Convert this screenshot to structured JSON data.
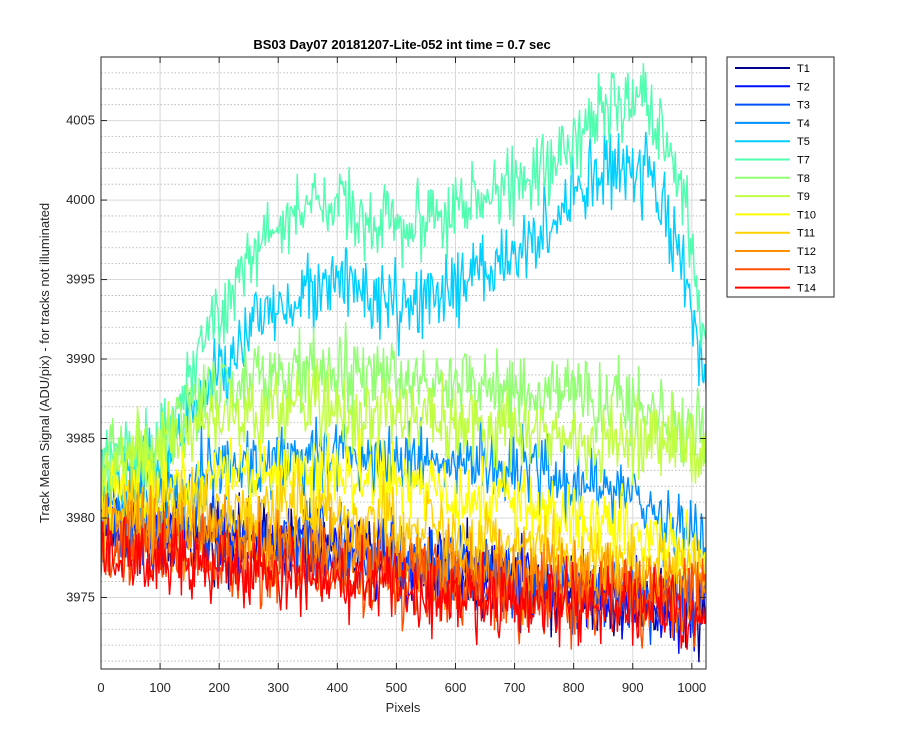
{
  "chart_data": {
    "type": "line",
    "title": "BS03 Day07 20181207-Lite-052 int time = 0.7 sec",
    "xlabel": "Pixels",
    "ylabel": "Track Mean Signal (ADU/pix) - for tracks not illuminated",
    "xlim": [
      0,
      1024
    ],
    "ylim": [
      3970.5,
      4009
    ],
    "xticks": [
      "0",
      "100",
      "200",
      "300",
      "400",
      "500",
      "600",
      "700",
      "800",
      "900",
      "1000"
    ],
    "yticks": [
      "3975",
      "3980",
      "3985",
      "3990",
      "3995",
      "4000",
      "4005"
    ],
    "grid": true,
    "minor_grid": true,
    "legend_position": "outside-right",
    "series": [
      {
        "name": "T1",
        "color": "#00008f",
        "noise": 1.5,
        "anchors": [
          [
            0,
            3979.5
          ],
          [
            150,
            3979
          ],
          [
            400,
            3978
          ],
          [
            700,
            3976
          ],
          [
            900,
            3975
          ],
          [
            1024,
            3974
          ]
        ]
      },
      {
        "name": "T2",
        "color": "#0010ff",
        "noise": 1.5,
        "anchors": [
          [
            0,
            3979.3
          ],
          [
            150,
            3979
          ],
          [
            400,
            3978
          ],
          [
            700,
            3976
          ],
          [
            900,
            3975
          ],
          [
            1024,
            3974
          ]
        ]
      },
      {
        "name": "T3",
        "color": "#0050ff",
        "noise": 1.5,
        "anchors": [
          [
            0,
            3979.6
          ],
          [
            150,
            3979.2
          ],
          [
            400,
            3978.3
          ],
          [
            700,
            3976.3
          ],
          [
            900,
            3975.3
          ],
          [
            1024,
            3974.3
          ]
        ]
      },
      {
        "name": "T4",
        "color": "#0090ff",
        "noise": 1.5,
        "anchors": [
          [
            0,
            3981
          ],
          [
            100,
            3982
          ],
          [
            200,
            3983
          ],
          [
            350,
            3984
          ],
          [
            500,
            3984
          ],
          [
            700,
            3983
          ],
          [
            850,
            3982
          ],
          [
            950,
            3980
          ],
          [
            1024,
            3979
          ]
        ]
      },
      {
        "name": "T5",
        "color": "#00cfff",
        "noise": 1.5,
        "anchors": [
          [
            0,
            3982
          ],
          [
            100,
            3983.5
          ],
          [
            200,
            3989
          ],
          [
            280,
            3993
          ],
          [
            380,
            3995
          ],
          [
            450,
            3994
          ],
          [
            530,
            3993
          ],
          [
            650,
            3995.5
          ],
          [
            750,
            3998
          ],
          [
            850,
            4002
          ],
          [
            920,
            4001.5
          ],
          [
            980,
            3997
          ],
          [
            1024,
            3988
          ]
        ]
      },
      {
        "name": "T7",
        "color": "#4fffaf",
        "noise": 1.5,
        "anchors": [
          [
            0,
            3983
          ],
          [
            100,
            3985
          ],
          [
            200,
            3993
          ],
          [
            280,
            3998
          ],
          [
            380,
            4000
          ],
          [
            450,
            3999
          ],
          [
            530,
            3998.5
          ],
          [
            650,
            4000
          ],
          [
            750,
            4002
          ],
          [
            850,
            4005.5
          ],
          [
            920,
            4006
          ],
          [
            980,
            4002
          ],
          [
            1024,
            3990
          ]
        ]
      },
      {
        "name": "T8",
        "color": "#90ff70",
        "noise": 1.5,
        "anchors": [
          [
            0,
            3983
          ],
          [
            100,
            3985
          ],
          [
            200,
            3988.5
          ],
          [
            350,
            3989
          ],
          [
            500,
            3989
          ],
          [
            700,
            3988
          ],
          [
            850,
            3987.5
          ],
          [
            950,
            3986.5
          ],
          [
            1024,
            3985
          ]
        ]
      },
      {
        "name": "T9",
        "color": "#bfff40",
        "noise": 1.5,
        "anchors": [
          [
            0,
            3983
          ],
          [
            100,
            3984.5
          ],
          [
            200,
            3986.5
          ],
          [
            350,
            3987
          ],
          [
            500,
            3986.5
          ],
          [
            700,
            3985.5
          ],
          [
            850,
            3985
          ],
          [
            950,
            3984.8
          ],
          [
            1024,
            3984.5
          ]
        ]
      },
      {
        "name": "T10",
        "color": "#ffff00",
        "noise": 1.5,
        "anchors": [
          [
            0,
            3981.5
          ],
          [
            150,
            3982.5
          ],
          [
            300,
            3983
          ],
          [
            450,
            3982.5
          ],
          [
            600,
            3981.5
          ],
          [
            750,
            3980.5
          ],
          [
            900,
            3979
          ],
          [
            1024,
            3977.5
          ]
        ]
      },
      {
        "name": "T11",
        "color": "#ffcf00",
        "noise": 1.5,
        "anchors": [
          [
            0,
            3980
          ],
          [
            150,
            3980.5
          ],
          [
            300,
            3980.5
          ],
          [
            450,
            3980
          ],
          [
            600,
            3979
          ],
          [
            750,
            3978
          ],
          [
            900,
            3977
          ],
          [
            1024,
            3976.5
          ]
        ]
      },
      {
        "name": "T12",
        "color": "#ff9000",
        "noise": 1.5,
        "anchors": [
          [
            0,
            3979
          ],
          [
            150,
            3979
          ],
          [
            300,
            3978.5
          ],
          [
            450,
            3978
          ],
          [
            600,
            3977
          ],
          [
            750,
            3976.5
          ],
          [
            900,
            3976
          ],
          [
            1024,
            3975.5
          ]
        ]
      },
      {
        "name": "T13",
        "color": "#ff5000",
        "noise": 1.5,
        "anchors": [
          [
            0,
            3978
          ],
          [
            150,
            3977.5
          ],
          [
            300,
            3977
          ],
          [
            450,
            3976.5
          ],
          [
            600,
            3975.5
          ],
          [
            750,
            3975
          ],
          [
            900,
            3974.8
          ],
          [
            1024,
            3974.5
          ]
        ]
      },
      {
        "name": "T14",
        "color": "#ff0000",
        "noise": 1.5,
        "anchors": [
          [
            0,
            3977.5
          ],
          [
            150,
            3977
          ],
          [
            300,
            3976.5
          ],
          [
            450,
            3976
          ],
          [
            600,
            3975
          ],
          [
            750,
            3974.5
          ],
          [
            900,
            3974.3
          ],
          [
            1024,
            3974
          ]
        ]
      }
    ]
  }
}
